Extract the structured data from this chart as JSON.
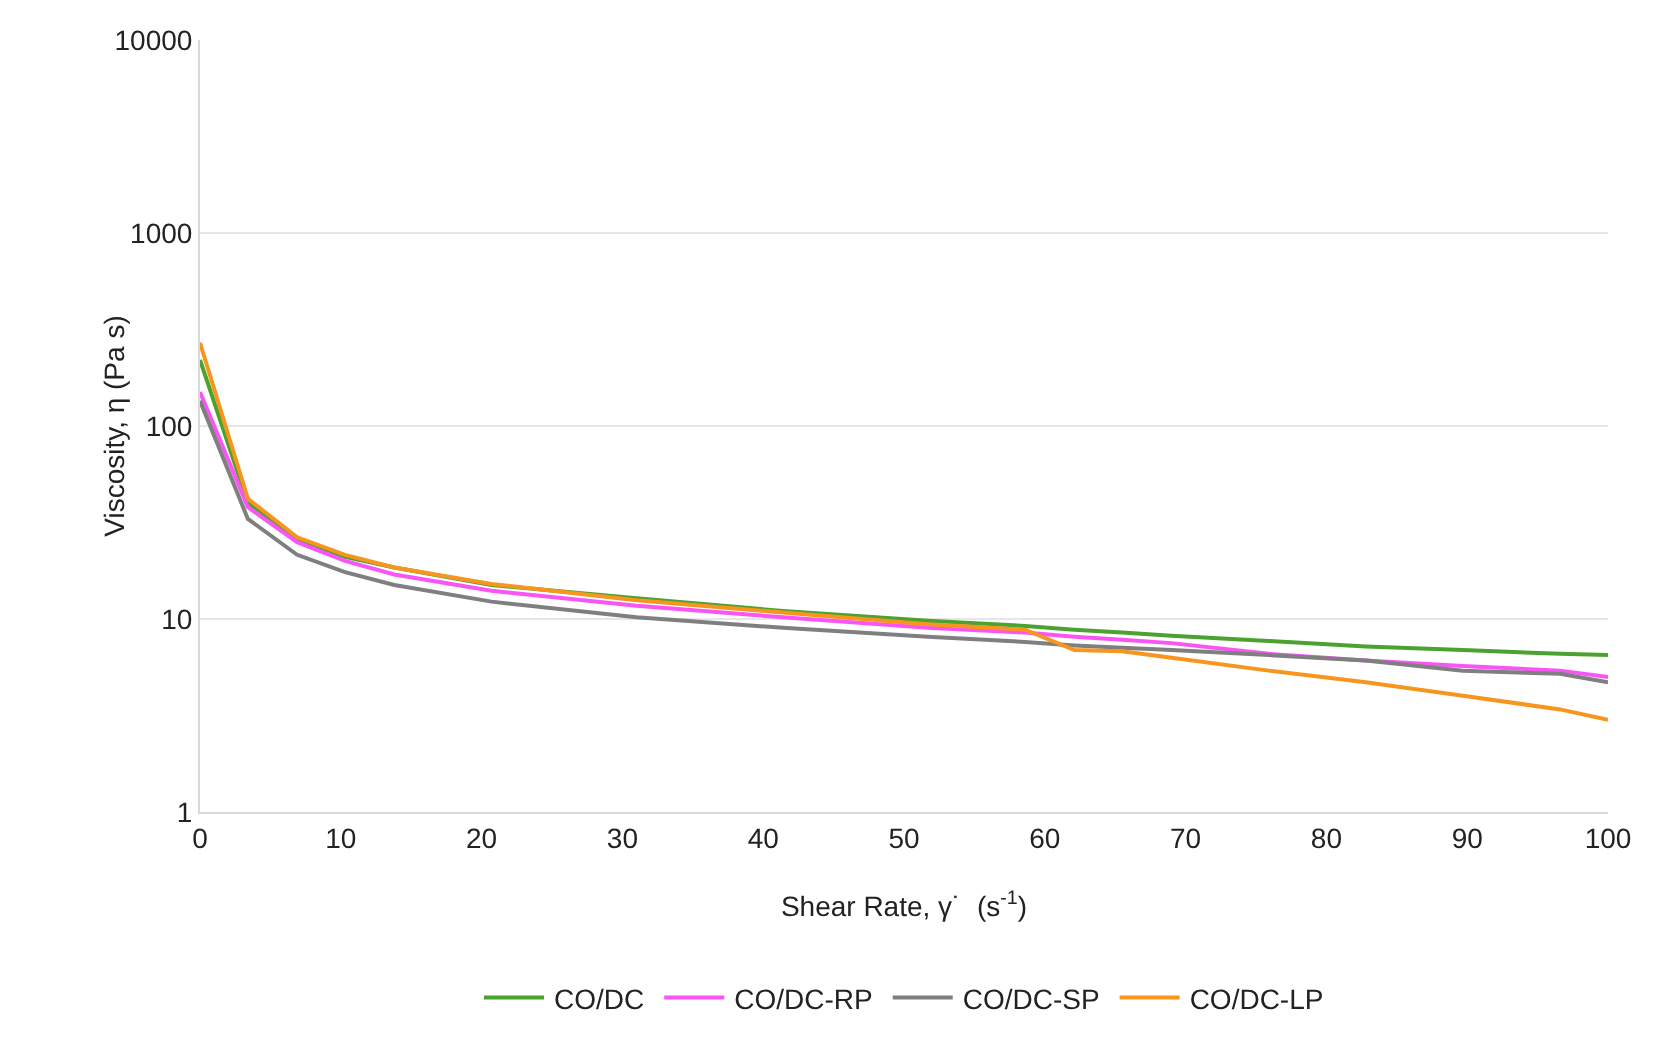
{
  "chart_data": {
    "type": "line",
    "xlabel": "Shear Rate, γ˙  (s$^{-1}$)",
    "ylabel": "Viscosity, η (Pa s)",
    "x": [
      0,
      3.4,
      6.9,
      10.3,
      13.8,
      20.7,
      31,
      41.4,
      51.7,
      58.6,
      62.1,
      65.5,
      69,
      75.9,
      82.8,
      89.7,
      96.6,
      100
    ],
    "series": [
      {
        "name": "CO/DC",
        "color": "#4ca22f",
        "values": [
          220,
          40,
          26,
          21,
          18.5,
          15,
          12.8,
          11,
          9.8,
          9.2,
          8.8,
          8.5,
          8.2,
          7.7,
          7.2,
          6.9,
          6.6,
          6.5
        ]
      },
      {
        "name": "CO/DC-RP",
        "color": "#f955f5",
        "values": [
          150,
          38,
          25,
          20,
          17,
          14,
          11.7,
          10.2,
          9,
          8.5,
          8.1,
          7.8,
          7.5,
          6.6,
          6.1,
          5.7,
          5.4,
          5.0
        ]
      },
      {
        "name": "CO/DC-SP",
        "color": "#7f7f7f",
        "values": [
          135,
          33,
          21.5,
          17.5,
          15,
          12.3,
          10.2,
          9,
          8.1,
          7.6,
          7.3,
          7.1,
          6.9,
          6.5,
          6.1,
          5.4,
          5.2,
          4.7
        ]
      },
      {
        "name": "CO/DC-LP",
        "color": "#f7961e",
        "values": [
          270,
          42,
          26.5,
          21.5,
          18.5,
          15.2,
          12.5,
          10.8,
          9.4,
          8.8,
          6.9,
          6.8,
          6.3,
          5.4,
          4.7,
          4.0,
          3.4,
          3.0
        ]
      }
    ],
    "xlim": [
      0,
      100
    ],
    "xticks": [
      0,
      10,
      20,
      30,
      40,
      50,
      60,
      70,
      80,
      90,
      100
    ],
    "ylim": [
      1,
      10000
    ],
    "yticks": [
      1,
      10,
      100,
      1000,
      10000
    ],
    "log": "y",
    "grid": "y",
    "legend": "bottom",
    "marker": "none",
    "line_style": "solid"
  }
}
